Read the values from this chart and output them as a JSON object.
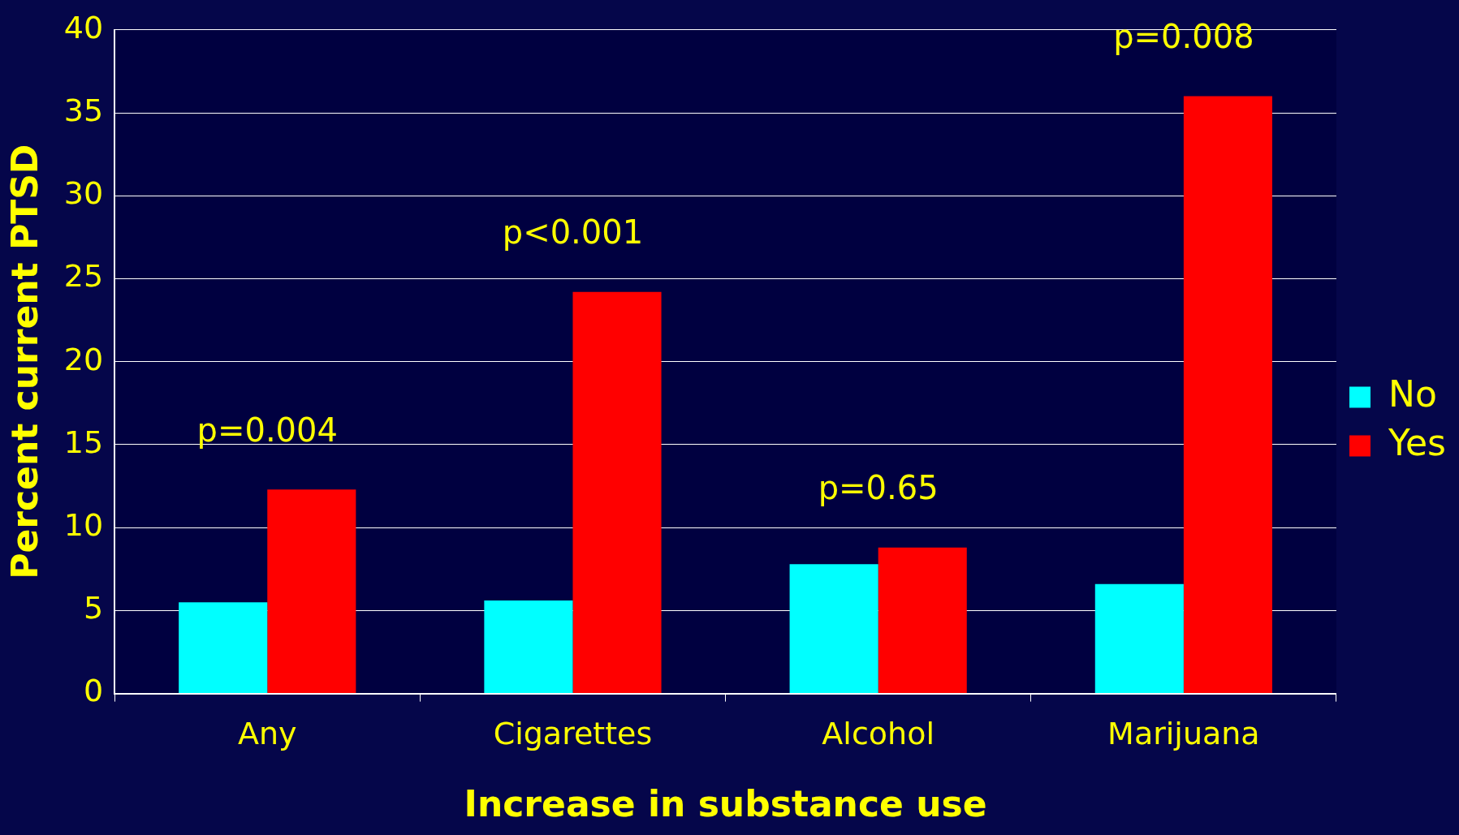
{
  "chart_data": {
    "type": "bar",
    "xlabel": "Increase in substance use",
    "ylabel": "Percent current PTSD",
    "categories": [
      "Any",
      "Cigarettes",
      "Alcohol",
      "Marijuana"
    ],
    "series": [
      {
        "name": "No",
        "color": "#00ffff",
        "values": [
          5.5,
          5.6,
          7.8,
          6.6
        ]
      },
      {
        "name": "Yes",
        "color": "#ff0000",
        "values": [
          12.3,
          24.2,
          8.8,
          36.0
        ]
      }
    ],
    "ylim": [
      0,
      40
    ],
    "yticks": [
      0,
      5,
      10,
      15,
      20,
      25,
      30,
      35,
      40
    ],
    "grid": "y",
    "legend": "right",
    "annotations": [
      "p=0.004",
      "p<0.001",
      "p=0.65",
      "p=0.008"
    ]
  }
}
